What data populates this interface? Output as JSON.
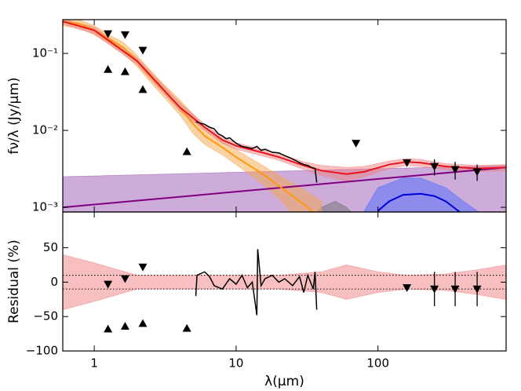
{
  "chart_data": [
    {
      "type": "sed",
      "ylabel": "fν/λ (Jy/μm)",
      "log_x": true,
      "log_y": true,
      "xlim": [
        0.6,
        800
      ],
      "xticks": [
        1,
        10,
        100
      ],
      "ylim": [
        0.00087,
        0.275
      ],
      "yticks": [
        {
          "value": 0.1,
          "label": "10⁻¹"
        },
        {
          "value": 0.01,
          "label": "10⁻²"
        },
        {
          "value": 0.001,
          "label": "10⁻³"
        }
      ],
      "series": [
        {
          "color": "#9b59b6",
          "x": [
            0.6,
            800
          ],
          "upper": [
            0.0025,
            0.0035
          ],
          "lower": [
            0.0006,
            0.0006
          ]
        },
        {
          "color": "#4d6cff",
          "x": [
            80,
            100,
            150,
            200,
            300,
            400,
            500,
            700
          ],
          "upper": [
            0.0009,
            0.0018,
            0.0024,
            0.0024,
            0.0018,
            0.0012,
            0.0009,
            0.0006
          ],
          "lower": [
            0.0005,
            0.0005,
            0.0005,
            0.0005,
            0.0005,
            0.0005,
            0.0005,
            0.0005
          ]
        },
        {
          "color": "#707070",
          "x": [
            30,
            40,
            50,
            60,
            80
          ],
          "upper": [
            0.0006,
            0.001,
            0.0012,
            0.001,
            0.0006
          ],
          "lower": [
            0.0005,
            0.0005,
            0.0005,
            0.0005,
            0.0005
          ]
        },
        {
          "color": "#f5a54a",
          "x": [
            0.6,
            0.8,
            1.0,
            1.3,
            1.6,
            2.0,
            2.5,
            3.0,
            4.0,
            5.0,
            6.0,
            8.0,
            10,
            15,
            20,
            30,
            40
          ],
          "upper": [
            0.29,
            0.27,
            0.23,
            0.17,
            0.14,
            0.095,
            0.06,
            0.042,
            0.025,
            0.016,
            0.011,
            0.0072,
            0.0056,
            0.0036,
            0.0026,
            0.0017,
            0.0012
          ],
          "lower": [
            0.23,
            0.21,
            0.175,
            0.13,
            0.1,
            0.068,
            0.042,
            0.029,
            0.016,
            0.009,
            0.0066,
            0.0048,
            0.0036,
            0.0021,
            0.0013,
            0.0006,
            0.0004
          ]
        },
        {
          "color": "#f08080",
          "x": [
            0.6,
            1.0,
            2.0,
            4.0,
            6.0,
            8.0,
            10,
            15,
            20,
            30,
            40,
            60,
            80,
            120,
            160,
            200,
            300,
            500,
            800
          ],
          "upper": [
            0.28,
            0.22,
            0.088,
            0.023,
            0.012,
            0.0082,
            0.0069,
            0.0057,
            0.005,
            0.0039,
            0.0035,
            0.0033,
            0.0034,
            0.004,
            0.0043,
            0.0042,
            0.0037,
            0.0035,
            0.0036
          ],
          "lower": [
            0.24,
            0.18,
            0.072,
            0.018,
            0.01,
            0.0068,
            0.0057,
            0.0047,
            0.0041,
            0.0031,
            0.0026,
            0.0022,
            0.0025,
            0.0032,
            0.0035,
            0.0034,
            0.0031,
            0.0029,
            0.003
          ]
        },
        {
          "color": "#800080",
          "x": [
            0.6,
            800
          ],
          "values": [
            0.001,
            0.0033
          ]
        },
        {
          "color": "#0000dd",
          "x": [
            100,
            120,
            150,
            200,
            250,
            300,
            400
          ],
          "values": [
            0.0009,
            0.0012,
            0.00145,
            0.0015,
            0.0014,
            0.0012,
            0.0008
          ]
        },
        {
          "color": "#ff9a0e",
          "x": [
            0.6,
            0.8,
            1.0,
            1.3,
            1.6,
            2.0,
            2.5,
            3.0,
            4.0,
            5.0,
            6.0,
            8.0,
            10,
            15,
            20,
            30,
            40
          ],
          "values": [
            0.26,
            0.24,
            0.2,
            0.15,
            0.12,
            0.08,
            0.05,
            0.035,
            0.02,
            0.012,
            0.0085,
            0.006,
            0.0045,
            0.0028,
            0.0019,
            0.0011,
            0.0007
          ]
        },
        {
          "color": "#e8141d",
          "x": [
            0.6,
            1.0,
            2.0,
            4.0,
            6.0,
            8.0,
            10,
            15,
            20,
            30,
            40,
            60,
            80,
            120,
            160,
            200,
            300,
            500,
            800
          ],
          "values": [
            0.26,
            0.2,
            0.08,
            0.02,
            0.011,
            0.0075,
            0.0063,
            0.0052,
            0.0045,
            0.0035,
            0.003,
            0.0027,
            0.0029,
            0.0036,
            0.0039,
            0.0038,
            0.0034,
            0.0032,
            0.0033
          ]
        },
        {
          "color": "#000000",
          "x": [
            5.2,
            5.5,
            6,
            6.5,
            7,
            7.5,
            8,
            8.5,
            9,
            10,
            11,
            12,
            13,
            14,
            15,
            16,
            18,
            20,
            22,
            24,
            26,
            28,
            30,
            32,
            34,
            36,
            37
          ],
          "values": [
            0.013,
            0.0125,
            0.012,
            0.011,
            0.0105,
            0.009,
            0.0085,
            0.0078,
            0.008,
            0.0068,
            0.0062,
            0.006,
            0.0058,
            0.0062,
            0.0055,
            0.0057,
            0.0052,
            0.0051,
            0.0047,
            0.0044,
            0.0041,
            0.0038,
            0.0036,
            0.0035,
            0.0033,
            0.0032,
            0.0021
          ]
        },
        {
          "color": "#000000",
          "marker": "triangle-up",
          "x": [
            1.25,
            1.65,
            2.2,
            4.5
          ],
          "values": [
            0.062,
            0.058,
            0.034,
            0.0053
          ]
        },
        {
          "color": "#000000",
          "marker": "triangle-down",
          "x": [
            1.25,
            1.65,
            2.2,
            70,
            160,
            250,
            350,
            500
          ],
          "values": [
            0.18,
            0.175,
            0.11,
            0.0068,
            0.0038,
            0.0034,
            0.0031,
            0.0029
          ],
          "yerr": [
            null,
            null,
            null,
            null,
            null,
            0.0008,
            0.0008,
            0.0007
          ]
        }
      ]
    },
    {
      "type": "residual",
      "xlabel": "λ(μm)",
      "ylabel": "Residual (%)",
      "log_x": true,
      "xlim": [
        0.6,
        800
      ],
      "xticks": [
        1,
        10,
        100
      ],
      "ylim": [
        -100,
        102
      ],
      "yticks": [
        50,
        0,
        {
          "value": -50,
          "label": "−50"
        },
        {
          "value": -100,
          "label": "−100"
        }
      ],
      "hlines": [
        10,
        -10
      ],
      "series": [
        {
          "color": "#f08080",
          "x": [
            0.6,
            1,
            2,
            5,
            10,
            20,
            40,
            60,
            100,
            160,
            300,
            500,
            800
          ],
          "upper": [
            40,
            28,
            10,
            10,
            10,
            10,
            15,
            25,
            15,
            10,
            12,
            18,
            25
          ],
          "lower": [
            -40,
            -28,
            -10,
            -10,
            -10,
            -10,
            -15,
            -25,
            -15,
            -10,
            -12,
            -18,
            -25
          ]
        },
        {
          "color": "#000000",
          "x": [
            5.2,
            5.3,
            6,
            6.5,
            7,
            8,
            9,
            10,
            11,
            12,
            13,
            14,
            14.2,
            15,
            16,
            18,
            20,
            22,
            25,
            28,
            30,
            32,
            35,
            36,
            37
          ],
          "values": [
            -20,
            10,
            15,
            8,
            -5,
            -10,
            5,
            -3,
            10,
            -8,
            0,
            -48,
            48,
            -5,
            5,
            10,
            0,
            5,
            -5,
            8,
            -15,
            10,
            -10,
            15,
            -40
          ]
        },
        {
          "color": "#000000",
          "marker": "triangle-up",
          "x": [
            1.25,
            1.65,
            2.2,
            4.5
          ],
          "values": [
            -68,
            -64,
            -60,
            -67
          ]
        },
        {
          "color": "#000000",
          "marker": "triangle-down",
          "x": [
            1.25,
            1.65,
            2.2,
            160,
            250,
            350,
            500
          ],
          "values": [
            -3,
            5,
            22,
            -8,
            -10,
            -10,
            -10
          ],
          "yerr": [
            null,
            null,
            null,
            null,
            25,
            25,
            25
          ]
        }
      ]
    }
  ]
}
